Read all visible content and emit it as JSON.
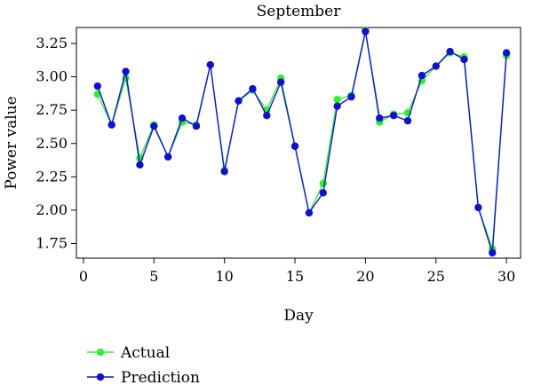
{
  "chart_data": {
    "type": "line",
    "title": "September",
    "xlabel": "Day",
    "ylabel": "Power value",
    "xlim": [
      -0.5,
      31
    ],
    "ylim": [
      1.64,
      3.37
    ],
    "xticks": [
      0,
      5,
      10,
      15,
      20,
      25,
      30
    ],
    "yticks": [
      1.75,
      2.0,
      2.25,
      2.5,
      2.75,
      3.0,
      3.25
    ],
    "ytick_labels": [
      "1.75",
      "2.00",
      "2.25",
      "2.50",
      "2.75",
      "3.00",
      "3.25"
    ],
    "legend_position": "below-left",
    "grid": false,
    "x": [
      1,
      2,
      3,
      4,
      5,
      6,
      7,
      8,
      9,
      10,
      11,
      12,
      13,
      14,
      15,
      16,
      17,
      18,
      19,
      20,
      21,
      22,
      23,
      24,
      25,
      26,
      27,
      28,
      29,
      30
    ],
    "series": [
      {
        "name": "Actual",
        "color": "#33ee33",
        "values": [
          2.87,
          2.64,
          2.99,
          2.39,
          2.64,
          2.4,
          2.66,
          2.64,
          3.09,
          2.3,
          2.82,
          2.9,
          2.75,
          2.99,
          2.48,
          1.98,
          2.2,
          2.83,
          2.86,
          3.35,
          2.66,
          2.72,
          2.73,
          2.97,
          3.08,
          3.18,
          3.15,
          2.02,
          1.71,
          3.16
        ]
      },
      {
        "name": "Prediction",
        "color": "#1111cc",
        "values": [
          2.93,
          2.64,
          3.04,
          2.34,
          2.63,
          2.4,
          2.69,
          2.63,
          3.09,
          2.29,
          2.82,
          2.91,
          2.71,
          2.96,
          2.48,
          1.98,
          2.13,
          2.78,
          2.85,
          3.34,
          2.69,
          2.71,
          2.67,
          3.01,
          3.08,
          3.19,
          3.13,
          2.02,
          1.68,
          3.18
        ]
      }
    ]
  }
}
